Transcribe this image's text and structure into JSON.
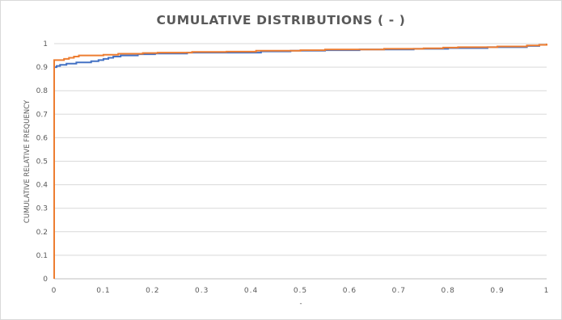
{
  "chart_data": {
    "type": "line",
    "title": "CUMULATIVE DISTRIBUTIONS ( - )",
    "xlabel": "-",
    "ylabel": "CUMULATIVE RELATIVE FREQUENCY",
    "xlim": [
      0,
      1
    ],
    "ylim": [
      0,
      1
    ],
    "xticks": [
      "0",
      "0.1",
      "0.2",
      "0.3",
      "0.4",
      "0.5",
      "0.6",
      "0.7",
      "0.8",
      "0.9",
      "1"
    ],
    "yticks": [
      "0",
      "0.1",
      "0.2",
      "0.3",
      "0.4",
      "0.5",
      "0.6",
      "0.7",
      "0.8",
      "0.9",
      "1"
    ],
    "grid": true,
    "legend": "none",
    "series": [
      {
        "color": "#4472c4",
        "step": true,
        "points": [
          [
            0,
            0
          ],
          [
            0,
            0.9
          ],
          [
            0.005,
            0.905
          ],
          [
            0.012,
            0.91
          ],
          [
            0.025,
            0.915
          ],
          [
            0.045,
            0.92
          ],
          [
            0.075,
            0.925
          ],
          [
            0.09,
            0.93
          ],
          [
            0.1,
            0.935
          ],
          [
            0.11,
            0.94
          ],
          [
            0.12,
            0.945
          ],
          [
            0.135,
            0.95
          ],
          [
            0.17,
            0.955
          ],
          [
            0.205,
            0.958
          ],
          [
            0.27,
            0.962
          ],
          [
            0.42,
            0.967
          ],
          [
            0.48,
            0.97
          ],
          [
            0.55,
            0.972
          ],
          [
            0.62,
            0.975
          ],
          [
            0.73,
            0.978
          ],
          [
            0.8,
            0.981
          ],
          [
            0.88,
            0.985
          ],
          [
            0.96,
            0.99
          ],
          [
            0.985,
            0.995
          ],
          [
            1,
            1
          ]
        ]
      },
      {
        "color": "#ed7d31",
        "step": true,
        "points": [
          [
            0,
            0
          ],
          [
            0,
            0.93
          ],
          [
            0.02,
            0.935
          ],
          [
            0.03,
            0.94
          ],
          [
            0.04,
            0.945
          ],
          [
            0.05,
            0.95
          ],
          [
            0.1,
            0.953
          ],
          [
            0.13,
            0.957
          ],
          [
            0.18,
            0.96
          ],
          [
            0.21,
            0.962
          ],
          [
            0.28,
            0.965
          ],
          [
            0.35,
            0.966
          ],
          [
            0.41,
            0.97
          ],
          [
            0.5,
            0.972
          ],
          [
            0.55,
            0.975
          ],
          [
            0.67,
            0.978
          ],
          [
            0.75,
            0.98
          ],
          [
            0.79,
            0.983
          ],
          [
            0.82,
            0.985
          ],
          [
            0.9,
            0.988
          ],
          [
            0.96,
            0.992
          ],
          [
            0.985,
            0.995
          ],
          [
            1,
            1
          ]
        ]
      }
    ]
  }
}
